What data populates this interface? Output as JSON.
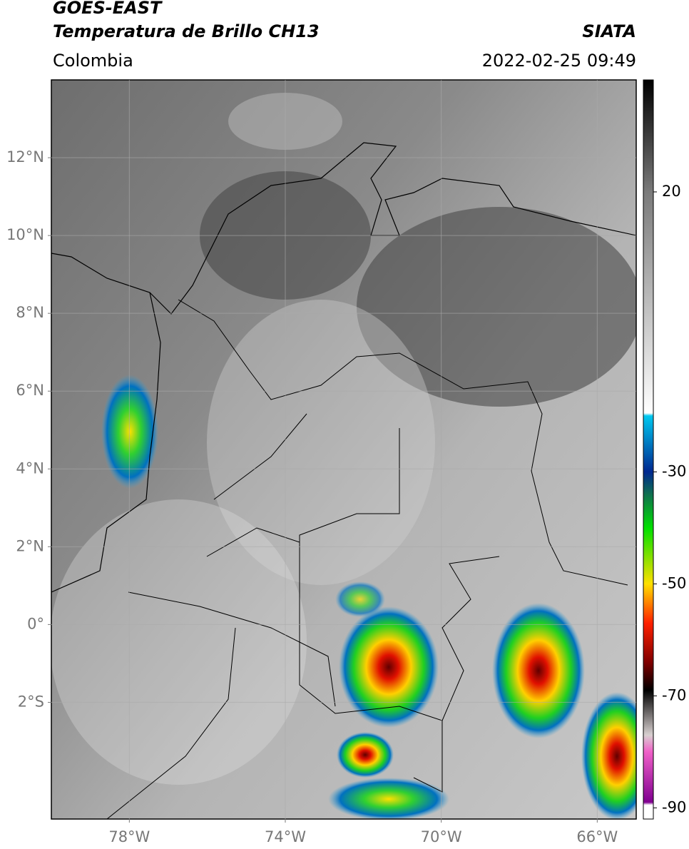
{
  "header": {
    "title": "GOES-EAST",
    "subtitle": "Temperatura de Brillo CH13",
    "region": "Colombia",
    "source": "SIATA",
    "datetime": "2022-02-25 09:49"
  },
  "map": {
    "lonlim": [
      -80,
      -65
    ],
    "latlim": [
      -5,
      14
    ],
    "lonticks": [
      {
        "value": -78,
        "label": "78°W"
      },
      {
        "value": -74,
        "label": "74°W"
      },
      {
        "value": -70,
        "label": "70°W"
      },
      {
        "value": -66,
        "label": "66°W"
      }
    ],
    "latticks": [
      {
        "value": 12,
        "label": "12°N"
      },
      {
        "value": 10,
        "label": "10°N"
      },
      {
        "value": 8,
        "label": "8°N"
      },
      {
        "value": 6,
        "label": "6°N"
      },
      {
        "value": 4,
        "label": "4°N"
      },
      {
        "value": 2,
        "label": "2°N"
      },
      {
        "value": 0,
        "label": "0°"
      },
      {
        "value": -2,
        "label": "2°S"
      }
    ],
    "grid": true
  },
  "colorbar": {
    "clim": [
      -92,
      40
    ],
    "ticks": [
      20,
      -30,
      -50,
      -70,
      -90
    ],
    "stops": [
      {
        "value": 40,
        "color": "#000000"
      },
      {
        "value": 20,
        "color": "#7a7a7a"
      },
      {
        "value": -19.5,
        "color": "#ffffff"
      },
      {
        "value": -20,
        "color": "#00c8f0"
      },
      {
        "value": -30,
        "color": "#002890"
      },
      {
        "value": -34,
        "color": "#107050"
      },
      {
        "value": -40,
        "color": "#00e000"
      },
      {
        "value": -50,
        "color": "#ffe000"
      },
      {
        "value": -57,
        "color": "#ff2000"
      },
      {
        "value": -64,
        "color": "#800000"
      },
      {
        "value": -69,
        "color": "#000000"
      },
      {
        "value": -77,
        "color": "#d8d0d0"
      },
      {
        "value": -80,
        "color": "#f060c8"
      },
      {
        "value": -89,
        "color": "#800090"
      },
      {
        "value": -89.5,
        "color": "#ffffff"
      },
      {
        "value": -92,
        "color": "#ffffff"
      }
    ]
  }
}
